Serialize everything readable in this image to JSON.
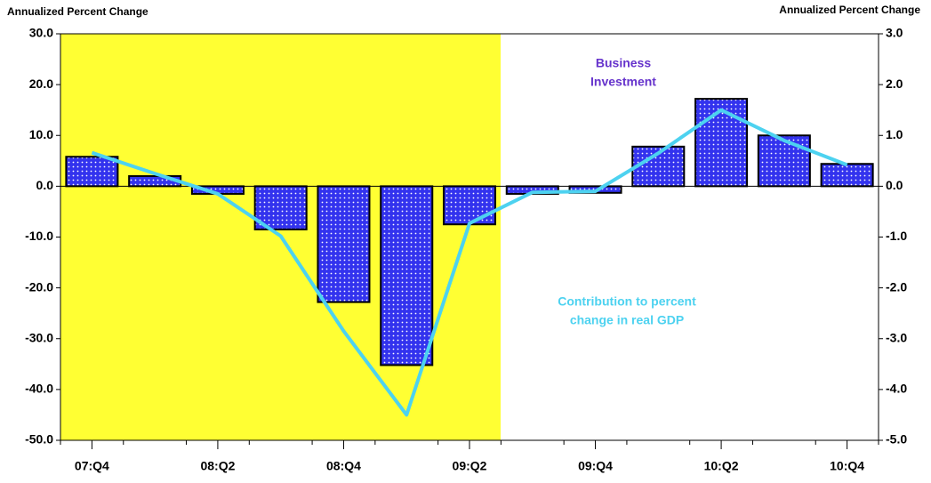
{
  "chart_data": {
    "type": "bar_line",
    "y_label": "Annualized Percent Change",
    "y2_label": "Annualized Percent Change",
    "categories": [
      "07:Q4",
      null,
      "08:Q2",
      null,
      "08:Q4",
      null,
      "09:Q2",
      null,
      "09:Q4",
      null,
      "10:Q2",
      null,
      "10:Q4"
    ],
    "series": [
      {
        "name": "Business Investment",
        "type": "bar",
        "color": "#3333ee",
        "values": [
          5.8,
          2.0,
          -1.5,
          -8.5,
          -22.8,
          -35.2,
          -7.5,
          -1.5,
          -1.3,
          7.8,
          17.2,
          10.0,
          4.4
        ]
      },
      {
        "name": "Contribution to percent change in real GDP",
        "type": "line",
        "axis": "y2",
        "color": "#4dd2f0",
        "values": [
          0.66,
          0.25,
          -0.15,
          -0.98,
          -2.85,
          -4.5,
          -0.73,
          -0.12,
          -0.1,
          0.65,
          1.5,
          0.9,
          0.42
        ]
      }
    ],
    "annotations": [
      {
        "lines": [
          "Business",
          "Investment"
        ],
        "color": "#6633cc"
      },
      {
        "lines": [
          "Contribution to percent",
          "change in real GDP"
        ],
        "color": "#4dd2f0"
      }
    ],
    "ylim": [
      -50,
      30
    ],
    "yticks": [
      {
        "value": -50,
        "label": "-50.0"
      },
      {
        "value": -40,
        "label": "-40.0"
      },
      {
        "value": -30,
        "label": "-30.0"
      },
      {
        "value": -20,
        "label": "-20.0"
      },
      {
        "value": -10,
        "label": "-10.0"
      },
      {
        "value": 0,
        "label": "0.0"
      },
      {
        "value": 10,
        "label": "10.0"
      },
      {
        "value": 20,
        "label": "20.0"
      },
      {
        "value": 30,
        "label": "30.0"
      }
    ],
    "y2lim": [
      -5,
      3
    ],
    "y2ticks": [
      {
        "value": -5,
        "label": "-5.0"
      },
      {
        "value": -4,
        "label": "-4.0"
      },
      {
        "value": -3,
        "label": "-3.0"
      },
      {
        "value": -2,
        "label": "-2.0"
      },
      {
        "value": -1,
        "label": "-1.0"
      },
      {
        "value": 0,
        "label": "0.0"
      },
      {
        "value": 1,
        "label": "1.0"
      },
      {
        "value": 2,
        "label": "2.0"
      },
      {
        "value": 3,
        "label": "3.0"
      }
    ]
  }
}
